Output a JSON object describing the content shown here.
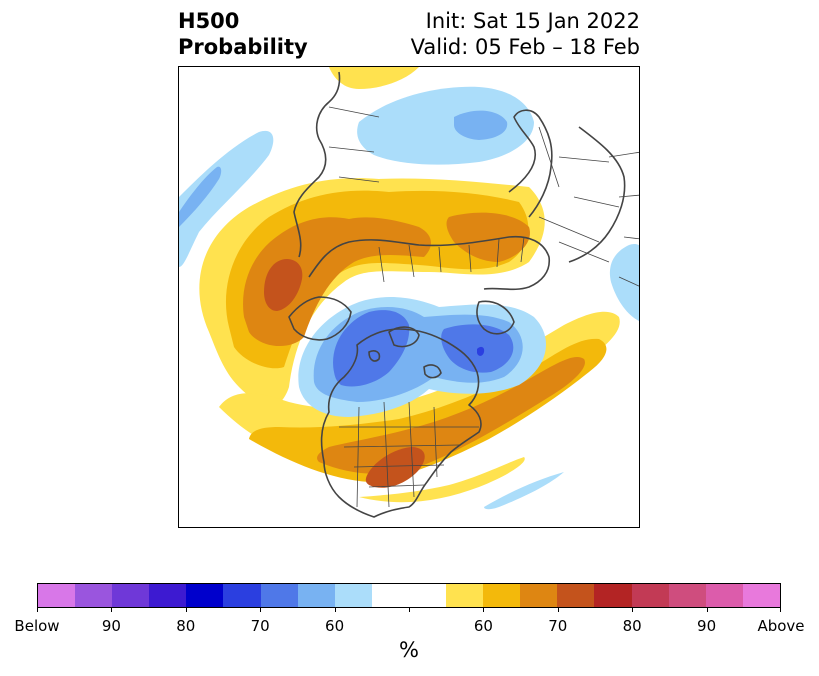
{
  "header": {
    "title_line1": "H500",
    "title_line2": "Probability",
    "init": "Init: Sat 15 Jan 2022",
    "valid": "Valid: 05 Feb – 18 Feb"
  },
  "colorbar": {
    "colors": [
      "#d877e8",
      "#9a55de",
      "#6f38d8",
      "#3d1ad1",
      "#0000cc",
      "#2b3fe0",
      "#4f78e8",
      "#78b2f2",
      "#abddfa",
      "#ffffff",
      "#ffffff",
      "#ffe24f",
      "#f3b90b",
      "#de8612",
      "#c4531c",
      "#b32424",
      "#c23a55",
      "#cf4d7e",
      "#dc5cab",
      "#e879dc"
    ],
    "tick_labels": [
      "Below",
      "90",
      "80",
      "70",
      "60",
      "",
      "60",
      "70",
      "80",
      "90",
      "Above"
    ],
    "unit_label": "%"
  },
  "map": {
    "projection": "north-polar-stereographic",
    "colors": {
      "below_60": "#abddfa",
      "below_70": "#78b2f2",
      "below_80": "#4f78e8",
      "below_90": "#2b3fe0",
      "above_60": "#ffe24f",
      "above_70": "#f3b90b",
      "above_80": "#de8612",
      "above_90": "#c4531c",
      "coastline": "#444444"
    }
  }
}
